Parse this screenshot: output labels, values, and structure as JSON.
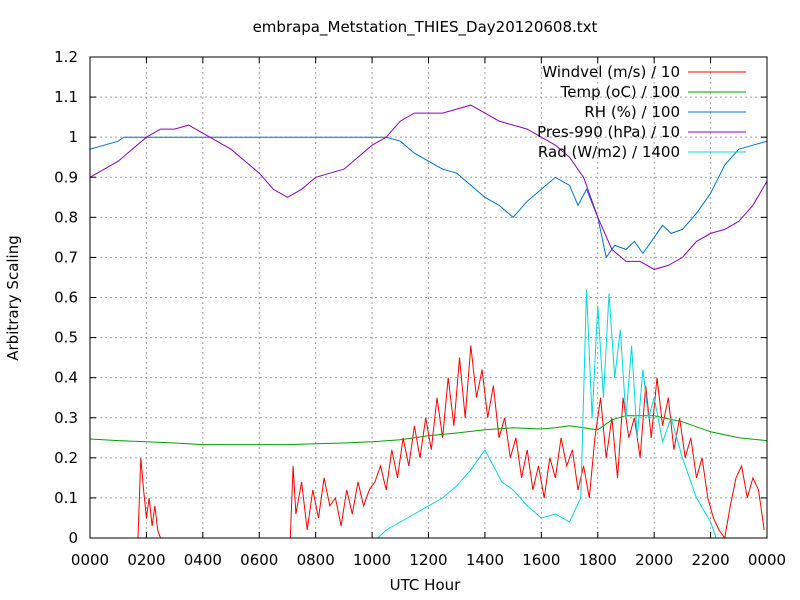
{
  "chart_data": {
    "type": "line",
    "title": "embrapa_Metstation_THIES_Day20120608.txt",
    "xlabel": "UTC Hour",
    "ylabel": "Arbitrary Scaling",
    "xlim": [
      0,
      24
    ],
    "ylim": [
      0,
      1.2
    ],
    "x_ticks": [
      0,
      2,
      4,
      6,
      8,
      10,
      12,
      14,
      16,
      18,
      20,
      22,
      24
    ],
    "x_tick_labels": [
      "0000",
      "0200",
      "0400",
      "0600",
      "0800",
      "1000",
      "1200",
      "1400",
      "1600",
      "1800",
      "2000",
      "2200",
      "0000"
    ],
    "y_ticks": [
      0,
      0.1,
      0.2,
      0.3,
      0.4,
      0.5,
      0.6,
      0.7,
      0.8,
      0.9,
      1,
      1.1,
      1.2
    ],
    "y_tick_labels": [
      "0",
      "0.1",
      "0.2",
      "0.3",
      "0.4",
      "0.5",
      "0.6",
      "0.7",
      "0.8",
      "0.9",
      "1",
      "1.1",
      "1.2"
    ],
    "grid": true,
    "legend_position": "top-right",
    "series": [
      {
        "name": "Windvel (m/s) / 10",
        "color": "#ff0000",
        "x": [
          1.7,
          1.8,
          1.9,
          2.0,
          2.1,
          2.2,
          2.3,
          2.4,
          2.5,
          7.1,
          7.2,
          7.3,
          7.5,
          7.7,
          7.9,
          8.1,
          8.3,
          8.5,
          8.7,
          8.9,
          9.1,
          9.3,
          9.5,
          9.7,
          9.9,
          10.1,
          10.3,
          10.5,
          10.7,
          10.9,
          11.1,
          11.3,
          11.5,
          11.7,
          11.9,
          12.1,
          12.3,
          12.5,
          12.7,
          12.9,
          13.1,
          13.3,
          13.5,
          13.7,
          13.9,
          14.1,
          14.3,
          14.5,
          14.7,
          14.9,
          15.1,
          15.3,
          15.5,
          15.7,
          15.9,
          16.1,
          16.3,
          16.5,
          16.7,
          16.9,
          17.1,
          17.3,
          17.5,
          17.7,
          17.9,
          18.1,
          18.3,
          18.5,
          18.7,
          18.9,
          19.1,
          19.3,
          19.5,
          19.7,
          19.9,
          20.1,
          20.3,
          20.5,
          20.7,
          20.9,
          21.1,
          21.3,
          21.5,
          21.7,
          21.9,
          22.1,
          22.3,
          22.5,
          22.7,
          22.9,
          23.1,
          23.3,
          23.5,
          23.7,
          23.9
        ],
        "y": [
          0.0,
          0.2,
          0.12,
          0.05,
          0.1,
          0.03,
          0.08,
          0.02,
          0.0,
          0.0,
          0.18,
          0.06,
          0.14,
          0.02,
          0.12,
          0.05,
          0.15,
          0.08,
          0.1,
          0.03,
          0.12,
          0.06,
          0.14,
          0.08,
          0.12,
          0.14,
          0.18,
          0.12,
          0.22,
          0.15,
          0.25,
          0.18,
          0.28,
          0.2,
          0.3,
          0.22,
          0.35,
          0.25,
          0.4,
          0.28,
          0.45,
          0.3,
          0.48,
          0.35,
          0.42,
          0.3,
          0.38,
          0.25,
          0.3,
          0.2,
          0.25,
          0.15,
          0.22,
          0.12,
          0.18,
          0.1,
          0.2,
          0.15,
          0.25,
          0.18,
          0.22,
          0.12,
          0.18,
          0.1,
          0.25,
          0.35,
          0.2,
          0.3,
          0.15,
          0.35,
          0.25,
          0.3,
          0.2,
          0.38,
          0.25,
          0.4,
          0.28,
          0.35,
          0.22,
          0.3,
          0.2,
          0.25,
          0.15,
          0.2,
          0.1,
          0.05,
          0.02,
          0.0,
          0.08,
          0.15,
          0.18,
          0.1,
          0.15,
          0.12,
          0.02
        ]
      },
      {
        "name": "Temp (oC) / 100",
        "color": "#00a000",
        "x": [
          0,
          1,
          2,
          3,
          4,
          5,
          6,
          7,
          8,
          9,
          10,
          11,
          12,
          13,
          14,
          15,
          16,
          16.5,
          17,
          17.5,
          18,
          18.5,
          19,
          20,
          21,
          22,
          23,
          24
        ],
        "y": [
          0.247,
          0.243,
          0.24,
          0.237,
          0.233,
          0.233,
          0.233,
          0.233,
          0.235,
          0.237,
          0.24,
          0.245,
          0.255,
          0.262,
          0.27,
          0.275,
          0.272,
          0.275,
          0.28,
          0.275,
          0.27,
          0.295,
          0.305,
          0.305,
          0.29,
          0.265,
          0.25,
          0.243
        ]
      },
      {
        "name": "RH (%) / 100",
        "color": "#0070d0",
        "x": [
          0,
          0.5,
          1.0,
          1.2,
          2,
          3,
          4,
          5,
          6,
          7,
          8,
          9,
          10,
          10.5,
          11,
          11.5,
          12,
          12.5,
          13,
          13.5,
          14,
          14.5,
          15,
          15.5,
          16,
          16.5,
          17,
          17.3,
          17.6,
          18,
          18.3,
          18.6,
          19,
          19.3,
          19.6,
          20,
          20.3,
          20.6,
          21,
          21.5,
          22,
          22.5,
          23,
          23.5,
          24
        ],
        "y": [
          0.97,
          0.98,
          0.99,
          1.0,
          1.0,
          1.0,
          1.0,
          1.0,
          1.0,
          1.0,
          1.0,
          1.0,
          1.0,
          1.0,
          0.99,
          0.96,
          0.94,
          0.92,
          0.91,
          0.88,
          0.85,
          0.83,
          0.8,
          0.84,
          0.87,
          0.9,
          0.88,
          0.83,
          0.87,
          0.8,
          0.7,
          0.73,
          0.72,
          0.74,
          0.71,
          0.75,
          0.78,
          0.76,
          0.77,
          0.81,
          0.86,
          0.93,
          0.97,
          0.98,
          0.99
        ]
      },
      {
        "name": "Pres-990 (hPa) / 10",
        "color": "#9000c0",
        "x": [
          0,
          0.5,
          1,
          1.5,
          2,
          2.5,
          3,
          3.5,
          4,
          4.5,
          5,
          5.5,
          6,
          6.5,
          7,
          7.5,
          8,
          8.5,
          9,
          9.5,
          10,
          10.5,
          11,
          11.5,
          12,
          12.5,
          13,
          13.5,
          14,
          14.5,
          15,
          15.5,
          16,
          16.5,
          17,
          17.5,
          18,
          18.5,
          19,
          19.5,
          20,
          20.5,
          21,
          21.5,
          22,
          22.5,
          23,
          23.5,
          24
        ],
        "y": [
          0.9,
          0.92,
          0.94,
          0.97,
          1.0,
          1.02,
          1.02,
          1.03,
          1.01,
          0.99,
          0.97,
          0.94,
          0.91,
          0.87,
          0.85,
          0.87,
          0.9,
          0.91,
          0.92,
          0.95,
          0.98,
          1.0,
          1.04,
          1.06,
          1.06,
          1.06,
          1.07,
          1.08,
          1.06,
          1.04,
          1.03,
          1.02,
          1.0,
          0.98,
          0.95,
          0.9,
          0.8,
          0.72,
          0.69,
          0.69,
          0.67,
          0.68,
          0.7,
          0.74,
          0.76,
          0.77,
          0.79,
          0.83,
          0.89
        ]
      },
      {
        "name": "Rad (W/m2) / 1400",
        "color": "#00d8e0",
        "x": [
          10.2,
          10.5,
          11,
          11.5,
          12,
          12.5,
          13,
          13.5,
          14,
          14.3,
          14.6,
          15,
          15.5,
          16,
          16.5,
          17,
          17.4,
          17.6,
          17.8,
          18.0,
          18.2,
          18.4,
          18.6,
          18.8,
          19.0,
          19.2,
          19.4,
          19.6,
          19.8,
          20.0,
          20.3,
          20.6,
          21,
          21.5,
          22,
          22.2
        ],
        "y": [
          0.0,
          0.02,
          0.04,
          0.06,
          0.08,
          0.1,
          0.13,
          0.17,
          0.22,
          0.18,
          0.14,
          0.12,
          0.08,
          0.05,
          0.06,
          0.04,
          0.1,
          0.62,
          0.3,
          0.58,
          0.35,
          0.61,
          0.4,
          0.52,
          0.3,
          0.48,
          0.25,
          0.42,
          0.3,
          0.35,
          0.24,
          0.3,
          0.2,
          0.1,
          0.04,
          0.0
        ]
      }
    ]
  }
}
